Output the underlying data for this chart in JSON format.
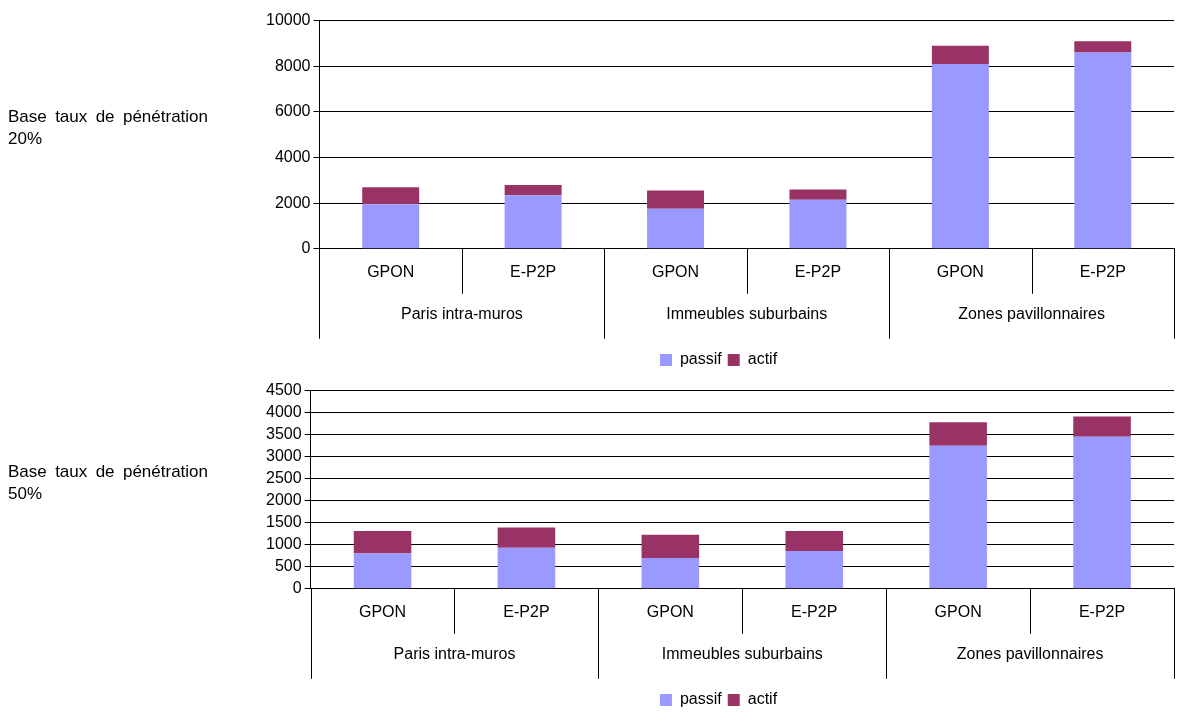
{
  "chart_data": [
    {
      "type": "bar",
      "title": "Base taux de pénétration 20%",
      "categories": [
        "GPON",
        "E-P2P",
        "GPON",
        "E-P2P",
        "GPON",
        "E-P2P"
      ],
      "annotations": [
        "Paris intra-muros",
        "Immeubles suburbains",
        "Zones pavillonnaires"
      ],
      "stacked": true,
      "series": [
        {
          "name": "passif",
          "color": "#9999ff",
          "values": [
            1950,
            2350,
            1750,
            2150,
            8100,
            8600
          ]
        },
        {
          "name": "actif",
          "color": "#993366",
          "values": [
            750,
            450,
            800,
            450,
            800,
            500
          ]
        }
      ],
      "ylim": [
        0,
        10000
      ],
      "yticks": [
        0,
        2000,
        4000,
        6000,
        8000,
        10000
      ],
      "grid": "y",
      "legend": "bottom"
    },
    {
      "type": "bar",
      "title": "Base taux de pénétration 50%",
      "categories": [
        "GPON",
        "E-P2P",
        "GPON",
        "E-P2P",
        "GPON",
        "E-P2P"
      ],
      "annotations": [
        "Paris intra-muros",
        "Immeubles suburbains",
        "Zones pavillonnaires"
      ],
      "stacked": true,
      "series": [
        {
          "name": "passif",
          "color": "#9999ff",
          "values": [
            800,
            930,
            700,
            860,
            3250,
            3450
          ]
        },
        {
          "name": "actif",
          "color": "#993366",
          "values": [
            510,
            460,
            530,
            450,
            530,
            460
          ]
        }
      ],
      "ylim": [
        0,
        4500
      ],
      "yticks": [
        0,
        500,
        1000,
        1500,
        2000,
        2500,
        3000,
        3500,
        4000,
        4500
      ],
      "grid": "y",
      "legend": "bottom"
    }
  ]
}
